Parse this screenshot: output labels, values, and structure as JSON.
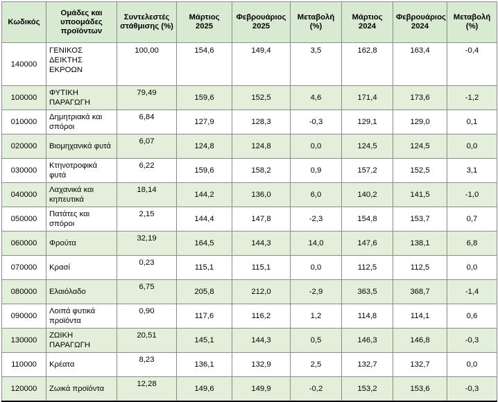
{
  "headers": {
    "code": "Κωδικός",
    "group": "Ομάδες και υποομάδες προϊόντων",
    "weight": "Συντελεστές στάθμισης (%)",
    "mar2025": "Μάρτιος 2025",
    "feb2025": "Φεβρουάριος 2025",
    "change2025": "Μεταβολή (%)",
    "mar2024": "Μάρτιος 2024",
    "feb2024": "Φεβρουάριος 2024",
    "change2024": "Μεταβολή (%)"
  },
  "rows": [
    {
      "code": "140000",
      "name": "ΓΕΝΙΚΟΣ ΔΕΙΚΤΗΣ ΕΚΡΟΩΝ",
      "weight": "100,00",
      "mar2025": "154,6",
      "feb2025": "149,4",
      "change2025": "3,5",
      "mar2024": "162,8",
      "feb2024": "163,4",
      "change2024": "-0,4"
    },
    {
      "code": "100000",
      "name": "ΦΥΤΙΚΗ ΠΑΡΑΓΩΓΗ",
      "weight": "79,49",
      "mar2025": "159,6",
      "feb2025": "152,5",
      "change2025": "4,6",
      "mar2024": "171,4",
      "feb2024": "173,6",
      "change2024": "-1,2"
    },
    {
      "code": "010000",
      "name": "Δημητριακά και σπόροι",
      "weight": "6,84",
      "mar2025": "127,9",
      "feb2025": "128,3",
      "change2025": "-0,3",
      "mar2024": "129,1",
      "feb2024": "129,0",
      "change2024": "0,1"
    },
    {
      "code": "020000",
      "name": "Βιομηχανικά φυτά",
      "weight": "6,07",
      "mar2025": "124,8",
      "feb2025": "124,8",
      "change2025": "0,0",
      "mar2024": "124,5",
      "feb2024": "124,5",
      "change2024": "0,0"
    },
    {
      "code": "030000",
      "name": "Κτηνοτροφικά φυτά",
      "weight": "6,22",
      "mar2025": "159,6",
      "feb2025": "158,2",
      "change2025": "0,9",
      "mar2024": "157,2",
      "feb2024": "152,5",
      "change2024": "3,1"
    },
    {
      "code": "040000",
      "name": "Λαχανικά και κηπευτικά",
      "weight": "18,14",
      "mar2025": "144,2",
      "feb2025": "136,0",
      "change2025": "6,0",
      "mar2024": "140,2",
      "feb2024": "141,5",
      "change2024": "-1,0"
    },
    {
      "code": "050000",
      "name": "Πατάτες και σπόροι",
      "weight": "2,15",
      "mar2025": "144,4",
      "feb2025": "147,8",
      "change2025": "-2,3",
      "mar2024": "154,8",
      "feb2024": "153,7",
      "change2024": "0,7"
    },
    {
      "code": "060000",
      "name": "Φρούτα",
      "weight": "32,19",
      "mar2025": "164,5",
      "feb2025": "144,3",
      "change2025": "14,0",
      "mar2024": "147,6",
      "feb2024": "138,1",
      "change2024": "6,8"
    },
    {
      "code": "070000",
      "name": "Κρασί",
      "weight": "0,23",
      "mar2025": "115,1",
      "feb2025": "115,1",
      "change2025": "0,0",
      "mar2024": "112,5",
      "feb2024": "112,5",
      "change2024": "0,0"
    },
    {
      "code": "080000",
      "name": "Ελαιόλαδο",
      "weight": "6,75",
      "mar2025": "205,8",
      "feb2025": "212,0",
      "change2025": "-2,9",
      "mar2024": "363,5",
      "feb2024": "368,7",
      "change2024": "-1,4"
    },
    {
      "code": "090000",
      "name": "Λοιπά φυτικά προϊόντα",
      "weight": "0,90",
      "mar2025": "117,6",
      "feb2025": "116,2",
      "change2025": "1,2",
      "mar2024": "114,8",
      "feb2024": "114,1",
      "change2024": "0,6"
    },
    {
      "code": "130000",
      "name": "ΖΩΙΚΗ ΠΑΡΑΓΩΓΗ",
      "weight": "20,51",
      "mar2025": "145,1",
      "feb2025": "144,3",
      "change2025": "0,5",
      "mar2024": "146,3",
      "feb2024": "146,8",
      "change2024": "-0,3"
    },
    {
      "code": "110000",
      "name": "Κρέατα",
      "weight": "8,23",
      "mar2025": "136,1",
      "feb2025": "132,9",
      "change2025": "2,5",
      "mar2024": "132,7",
      "feb2024": "132,7",
      "change2024": "0,0"
    },
    {
      "code": "120000",
      "name": "Ζωικά προϊόντα",
      "weight": "12,28",
      "mar2025": "149,6",
      "feb2025": "149,9",
      "change2025": "-0,2",
      "mar2024": "153,2",
      "feb2024": "153,6",
      "change2024": "-0,3"
    }
  ],
  "colors": {
    "header_bg": "#d9ead3",
    "row_shade": "#e2efda",
    "border": "#8a8a8a"
  }
}
